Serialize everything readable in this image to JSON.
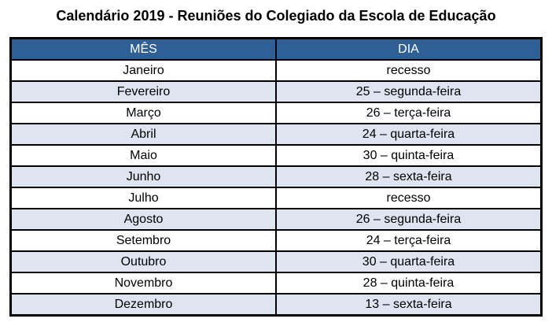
{
  "title": "Calendário 2019 - Reuniões do Colegiado da Escola de Educação",
  "table": {
    "headers": [
      "MÊS",
      "DIA"
    ],
    "rows": [
      {
        "month": "Janeiro",
        "day": "recesso"
      },
      {
        "month": "Fevereiro",
        "day": "25 – segunda-feira"
      },
      {
        "month": "Março",
        "day": "26 – terça-feira"
      },
      {
        "month": "Abril",
        "day": "24 – quarta-feira"
      },
      {
        "month": "Maio",
        "day": "30 – quinta-feira"
      },
      {
        "month": "Junho",
        "day": "28 – sexta-feira"
      },
      {
        "month": "Julho",
        "day": "recesso"
      },
      {
        "month": "Agosto",
        "day": "26 – segunda-feira"
      },
      {
        "month": "Setembro",
        "day": "24 – terça-feira"
      },
      {
        "month": "Outubro",
        "day": "30 – quarta-feira"
      },
      {
        "month": "Novembro",
        "day": "28 – quinta-feira"
      },
      {
        "month": "Dezembro",
        "day": "13 – sexta-feira"
      }
    ]
  },
  "colors": {
    "header_bg": "#2E6095",
    "header_text": "#FFFFFF",
    "row_bg": "#FFFFFF",
    "row_alt_bg": "#DEE5F0",
    "border": "#000000",
    "title_text": "#000000"
  }
}
